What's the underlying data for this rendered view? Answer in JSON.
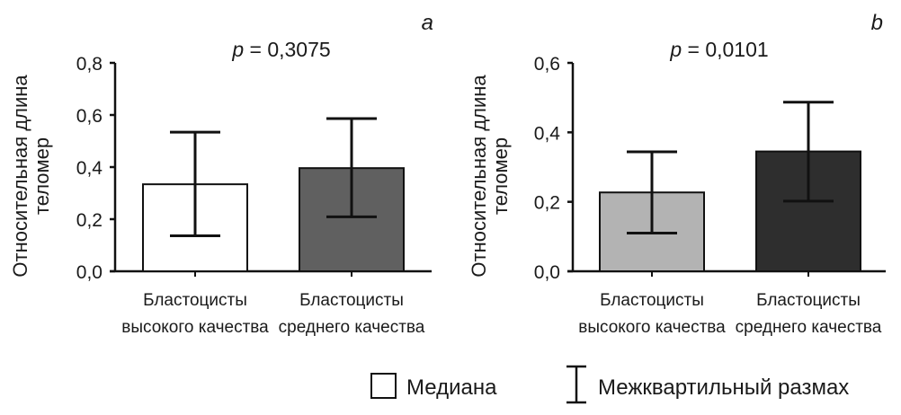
{
  "legend": {
    "median": "Медиана",
    "iqr": "Межквартильный размах"
  },
  "chart_data": [
    {
      "type": "bar",
      "panel": "a",
      "title": "p = 0,3075",
      "p_label": "p",
      "p_value": "= 0,3075",
      "ylabel_line1": "Относительная длина",
      "ylabel_line2": "теломер",
      "ylim": [
        0,
        0.8
      ],
      "yticks": [
        "0,0",
        "0,2",
        "0,4",
        "0,6",
        "0,8"
      ],
      "ytick_values": [
        0,
        0.2,
        0.4,
        0.6,
        0.8
      ],
      "categories": [
        {
          "line1": "Бластоцисты",
          "line2": "высокого качества"
        },
        {
          "line1": "Бластоцисты",
          "line2": "среднего качества"
        }
      ],
      "values": [
        0.334,
        0.396
      ],
      "q1": [
        0.136,
        0.209
      ],
      "q3": [
        0.534,
        0.586
      ],
      "colors": [
        "#ffffff",
        "#606060"
      ]
    },
    {
      "type": "bar",
      "panel": "b",
      "title": "p = 0,0101",
      "p_label": "p",
      "p_value": "= 0,0101",
      "ylabel_line1": "Относительная длина",
      "ylabel_line2": "теломер",
      "ylim": [
        0,
        0.6
      ],
      "yticks": [
        "0,0",
        "0,2",
        "0,4",
        "0,6"
      ],
      "ytick_values": [
        0,
        0.2,
        0.4,
        0.6
      ],
      "categories": [
        {
          "line1": "Бластоцисты",
          "line2": "высокого качества"
        },
        {
          "line1": "Бластоцисты",
          "line2": "среднего качества"
        }
      ],
      "values": [
        0.227,
        0.345
      ],
      "q1": [
        0.11,
        0.202
      ],
      "q3": [
        0.344,
        0.487
      ],
      "colors": [
        "#b3b3b3",
        "#2e2e2e"
      ]
    }
  ]
}
